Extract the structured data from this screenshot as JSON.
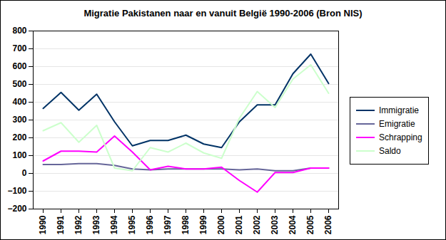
{
  "chart_data": {
    "type": "line",
    "title": "Migratie Pakistanen naar en vanuit België 1990-2006 (Bron NIS)",
    "categories": [
      "1990",
      "1991",
      "1992",
      "1993",
      "1994",
      "1995",
      "1996",
      "1997",
      "1998",
      "1999",
      "2000",
      "2001",
      "2002",
      "2003",
      "2004",
      "2005",
      "2006"
    ],
    "series": [
      {
        "name": "Immigratie",
        "color": "#003366",
        "values": [
          365,
          455,
          355,
          445,
          290,
          155,
          185,
          185,
          215,
          165,
          145,
          290,
          385,
          385,
          560,
          670,
          505
        ]
      },
      {
        "name": "Emigratie",
        "color": "#666699",
        "values": [
          50,
          50,
          55,
          55,
          45,
          25,
          20,
          25,
          25,
          25,
          25,
          20,
          25,
          15,
          15,
          30,
          30
        ]
      },
      {
        "name": "Schrapping",
        "color": "#ff00ff",
        "values": [
          70,
          125,
          125,
          120,
          210,
          120,
          20,
          40,
          25,
          25,
          35,
          -40,
          -105,
          5,
          5,
          30,
          30
        ]
      },
      {
        "name": "Saldo",
        "color": "#ccffcc",
        "values": [
          240,
          285,
          175,
          270,
          30,
          15,
          145,
          120,
          170,
          115,
          85,
          310,
          460,
          370,
          530,
          610,
          450
        ]
      }
    ],
    "ylim": [
      -200,
      800
    ],
    "yticks": [
      -200,
      -100,
      0,
      100,
      200,
      300,
      400,
      500,
      600,
      700,
      800
    ],
    "grid": true,
    "legend": "right"
  }
}
